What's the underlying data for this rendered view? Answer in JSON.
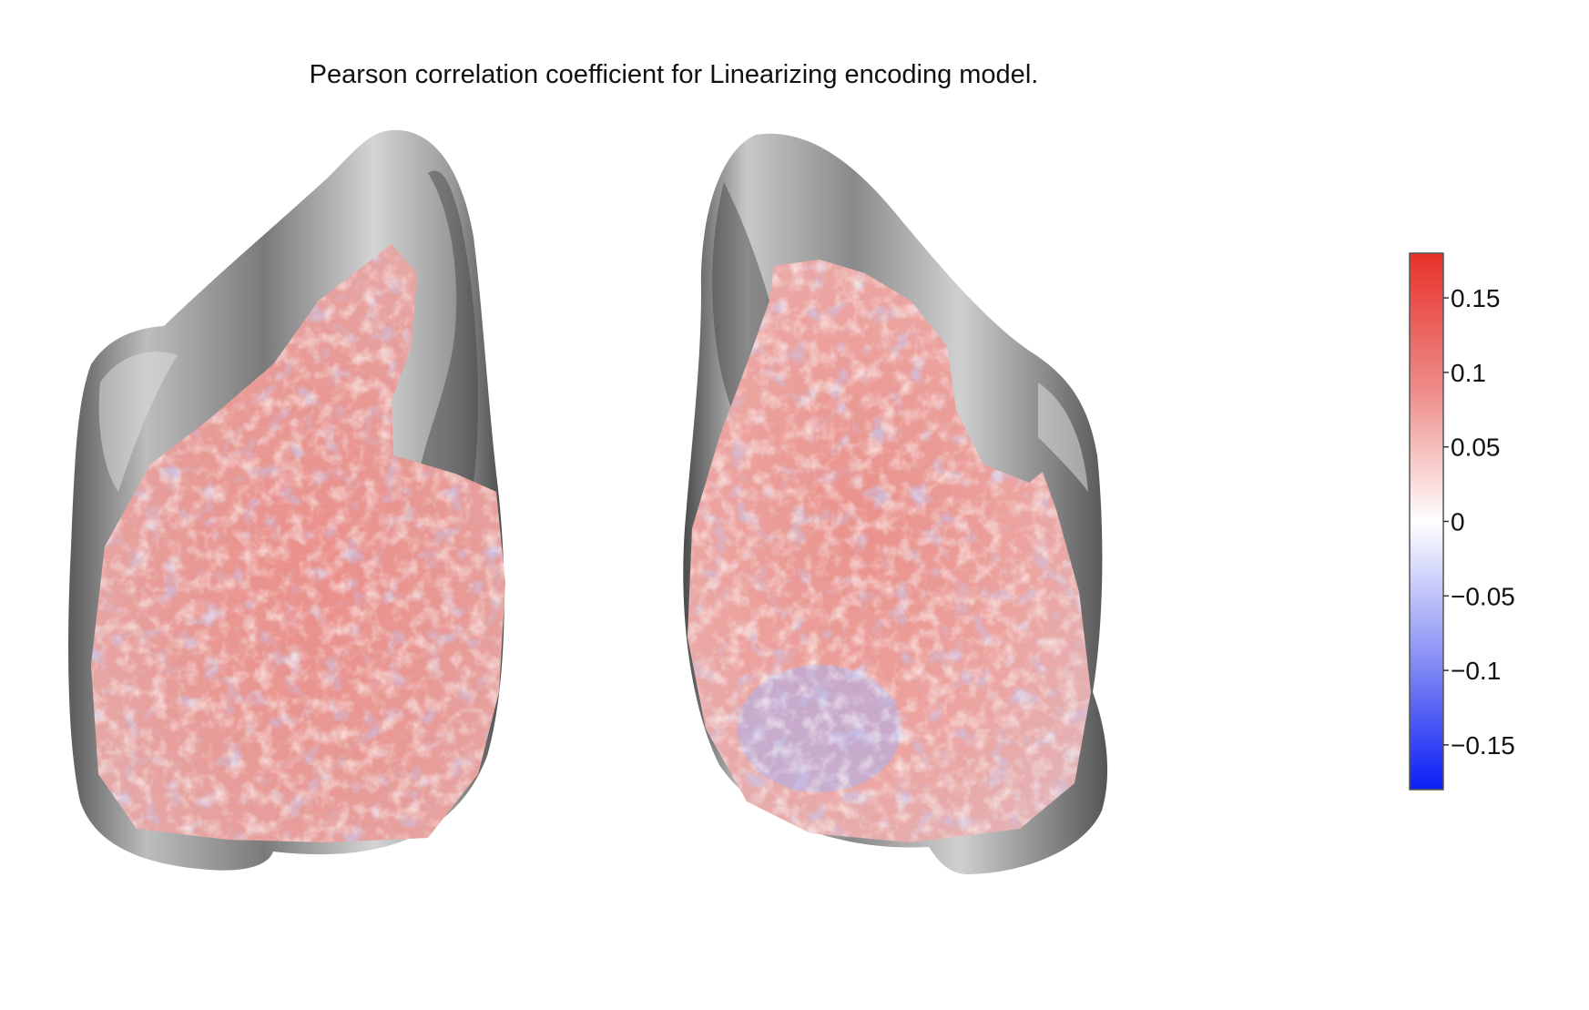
{
  "figure": {
    "title": "Pearson correlation coefficient for Linearizing encoding model.",
    "hemispheres": [
      "left",
      "right"
    ],
    "overlay_colors": {
      "positive": "#e0332a",
      "neutral": "#ffffff",
      "negative": "#0a1ef5"
    },
    "surface_colors": {
      "light": "#d6d6d6",
      "dark": "#4a4a4a"
    }
  },
  "colorbar": {
    "min": -0.18,
    "max": 0.18,
    "ticks": [
      {
        "value": 0.15,
        "label": "0.15"
      },
      {
        "value": 0.1,
        "label": "0.1"
      },
      {
        "value": 0.05,
        "label": "0.05"
      },
      {
        "value": 0,
        "label": "0"
      },
      {
        "value": -0.05,
        "label": "−0.05"
      },
      {
        "value": -0.1,
        "label": "−0.1"
      },
      {
        "value": -0.15,
        "label": "−0.15"
      }
    ]
  }
}
